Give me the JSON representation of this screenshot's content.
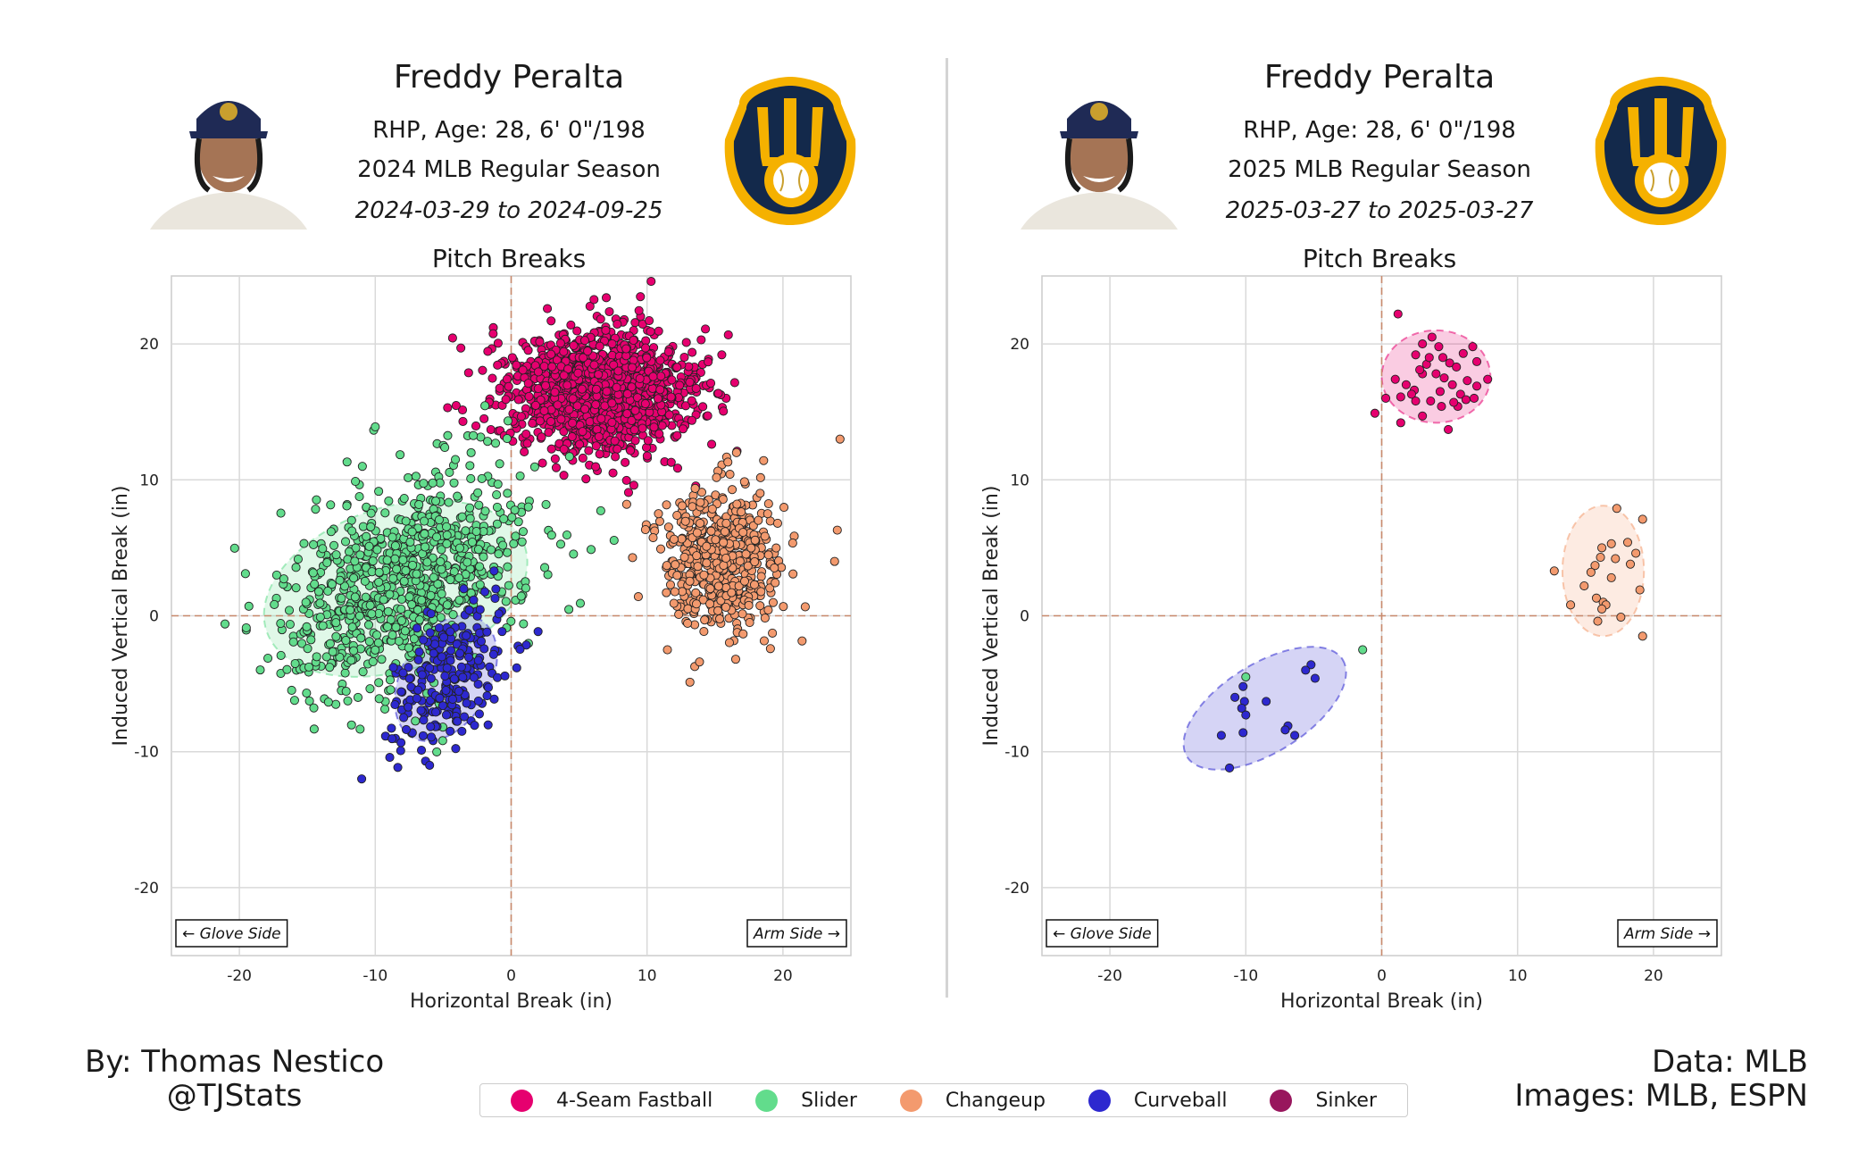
{
  "panels": [
    {
      "player_name": "Freddy Peralta",
      "bio": "RHP, Age: 28, 6' 0\"/198",
      "season": "2024 MLB Regular Season",
      "date_range": "2024-03-29 to 2024-09-25",
      "plot_title": "Pitch Breaks",
      "glove_side_label": "← Glove Side",
      "arm_side_label": "Arm Side →"
    },
    {
      "player_name": "Freddy Peralta",
      "bio": "RHP, Age: 28, 6' 0\"/198",
      "season": "2025 MLB Regular Season",
      "date_range": "2025-03-27 to 2025-03-27",
      "plot_title": "Pitch Breaks",
      "glove_side_label": "← Glove Side",
      "arm_side_label": "Arm Side →"
    }
  ],
  "credits": {
    "author": "By: Thomas Nestico",
    "handle": "@TJStats",
    "data_source": "Data: MLB",
    "image_source": "Images: MLB, ESPN"
  },
  "legend": [
    {
      "name": "4-Seam Fastball",
      "color": "#e6006f"
    },
    {
      "name": "Slider",
      "color": "#62dc8c"
    },
    {
      "name": "Changeup",
      "color": "#f39a6e"
    },
    {
      "name": "Curveball",
      "color": "#2d28cf"
    },
    {
      "name": "Sinker",
      "color": "#98165d"
    }
  ],
  "chart_data": [
    {
      "type": "scatter",
      "title": "Pitch Breaks",
      "xlabel": "Horizontal Break (in)",
      "ylabel": "Induced Vertical Break (in)",
      "xlim": [
        -25,
        25
      ],
      "ylim": [
        -25,
        25
      ],
      "xticks": [
        -20,
        -10,
        0,
        10,
        20
      ],
      "yticks": [
        -20,
        -10,
        0,
        10,
        20
      ],
      "grid": true,
      "reference_lines": {
        "x": 0,
        "y": 0
      },
      "series": [
        {
          "name": "4-Seam Fastball",
          "color": "#e6006f",
          "center": [
            6.5,
            16.5
          ],
          "spread": [
            3.5,
            2.3
          ],
          "count": 1300,
          "ellipse": null
        },
        {
          "name": "Slider",
          "color": "#62dc8c",
          "center": [
            -8,
            2.5
          ],
          "spread": [
            4.5,
            3.8
          ],
          "count": 850,
          "ellipse": {
            "center": [
              -8.5,
              2
            ],
            "width": 20,
            "height": 12,
            "angle": 18
          }
        },
        {
          "name": "Changeup",
          "color": "#f39a6e",
          "center": [
            15.5,
            4
          ],
          "spread": [
            2.2,
            2.6
          ],
          "count": 520,
          "ellipse": null
        },
        {
          "name": "Curveball",
          "color": "#2d28cf",
          "center": [
            -4.5,
            -4.5
          ],
          "spread": [
            2.2,
            2.3
          ],
          "count": 230,
          "ellipse": {
            "center": [
              -4.8,
              -4.6
            ],
            "width": 6.5,
            "height": 10,
            "angle": -30
          }
        }
      ],
      "outliers": [
        {
          "pitch": "Changeup",
          "x": 24.2,
          "y": 13
        },
        {
          "pitch": "Changeup",
          "x": 24,
          "y": 6.3
        },
        {
          "pitch": "Changeup",
          "x": 23.8,
          "y": 4
        },
        {
          "pitch": "Changeup",
          "x": 8.5,
          "y": 8.2
        },
        {
          "pitch": "4-Seam Fastball",
          "x": 10.3,
          "y": 24.6
        },
        {
          "pitch": "4-Seam Fastball",
          "x": 7,
          "y": 23.4
        },
        {
          "pitch": "4-Seam Fastball",
          "x": 15.5,
          "y": 19.2
        },
        {
          "pitch": "Slider",
          "x": -10,
          "y": 13.9
        },
        {
          "pitch": "Slider",
          "x": -19.3,
          "y": 0.7
        },
        {
          "pitch": "Curveball",
          "x": -11,
          "y": -12
        },
        {
          "pitch": "Curveball",
          "x": -6,
          "y": -11
        }
      ]
    },
    {
      "type": "scatter",
      "title": "Pitch Breaks",
      "xlabel": "Horizontal Break (in)",
      "ylabel": "Induced Vertical Break (in)",
      "xlim": [
        -25,
        25
      ],
      "ylim": [
        -25,
        25
      ],
      "xticks": [
        -20,
        -10,
        0,
        10,
        20
      ],
      "yticks": [
        -20,
        -10,
        0,
        10,
        20
      ],
      "grid": true,
      "reference_lines": {
        "x": 0,
        "y": 0
      },
      "series": [
        {
          "name": "4-Seam Fastball",
          "color": "#e6006f",
          "ellipse": {
            "center": [
              4,
              17.6
            ],
            "width": 8,
            "height": 6.8,
            "angle": 0
          },
          "points": [
            [
              1.2,
              22.2
            ],
            [
              2.5,
              19.2
            ],
            [
              3,
              20
            ],
            [
              3.7,
              20.5
            ],
            [
              4.2,
              19.8
            ],
            [
              4.5,
              19
            ],
            [
              5,
              18.6
            ],
            [
              5.5,
              18.3
            ],
            [
              6,
              19.3
            ],
            [
              6.7,
              19.8
            ],
            [
              7,
              18.7
            ],
            [
              7.8,
              17.4
            ],
            [
              1,
              17.4
            ],
            [
              1.8,
              17
            ],
            [
              2.4,
              16.6
            ],
            [
              3,
              17.8
            ],
            [
              3.3,
              18.5
            ],
            [
              4,
              17.8
            ],
            [
              4.6,
              17.5
            ],
            [
              5.2,
              17
            ],
            [
              5.8,
              16.3
            ],
            [
              6.3,
              17.3
            ],
            [
              7,
              16.9
            ],
            [
              1.4,
              16.1
            ],
            [
              2.2,
              16.3
            ],
            [
              3.6,
              15.8
            ],
            [
              4.3,
              16.5
            ],
            [
              5.6,
              15.4
            ],
            [
              6.2,
              15.9
            ],
            [
              6.8,
              16
            ],
            [
              0.3,
              16
            ],
            [
              2.5,
              15.8
            ],
            [
              4.4,
              15.4
            ],
            [
              3,
              14.7
            ],
            [
              4.9,
              13.7
            ],
            [
              1.4,
              14.2
            ],
            [
              -0.5,
              14.9
            ],
            [
              3.5,
              19
            ],
            [
              2.8,
              18.1
            ],
            [
              5.3,
              15.7
            ]
          ]
        },
        {
          "name": "Slider",
          "color": "#62dc8c",
          "points": [
            [
              -1.4,
              -2.5
            ],
            [
              -10,
              -4.5
            ]
          ]
        },
        {
          "name": "Changeup",
          "color": "#f39a6e",
          "ellipse": {
            "center": [
              16.3,
              3.3
            ],
            "width": 6,
            "height": 9.6,
            "angle": 0
          },
          "points": [
            [
              17.3,
              7.9
            ],
            [
              19.2,
              7.1
            ],
            [
              16.2,
              5
            ],
            [
              16.9,
              5.3
            ],
            [
              18.1,
              5.4
            ],
            [
              17.2,
              4.2
            ],
            [
              18.7,
              4.6
            ],
            [
              15.7,
              3.7
            ],
            [
              16.1,
              4.3
            ],
            [
              15.4,
              3.2
            ],
            [
              12.7,
              3.3
            ],
            [
              14.9,
              2.2
            ],
            [
              16.9,
              2.8
            ],
            [
              19,
              1.9
            ],
            [
              15.8,
              1.3
            ],
            [
              16.3,
              1
            ],
            [
              16.5,
              0.8
            ],
            [
              13.9,
              0.8
            ],
            [
              16.2,
              0.5
            ],
            [
              15.9,
              -0.4
            ],
            [
              17.6,
              -0.1
            ],
            [
              19.2,
              -1.5
            ],
            [
              18.3,
              3.8
            ]
          ]
        },
        {
          "name": "Curveball",
          "color": "#2d28cf",
          "ellipse": {
            "center": [
              -8.6,
              -6.8
            ],
            "width": 13.5,
            "height": 6.5,
            "angle": 32
          },
          "points": [
            [
              -5.2,
              -3.6
            ],
            [
              -5.6,
              -4
            ],
            [
              -4.9,
              -4.6
            ],
            [
              -10.2,
              -5.2
            ],
            [
              -10.8,
              -6
            ],
            [
              -10.1,
              -6.3
            ],
            [
              -8.5,
              -6.3
            ],
            [
              -10.3,
              -6.8
            ],
            [
              -10,
              -7.3
            ],
            [
              -6.9,
              -8.1
            ],
            [
              -7.1,
              -8.4
            ],
            [
              -11.8,
              -8.8
            ],
            [
              -10.2,
              -8.6
            ],
            [
              -6.4,
              -8.8
            ],
            [
              -11.2,
              -11.2
            ]
          ]
        }
      ]
    }
  ]
}
